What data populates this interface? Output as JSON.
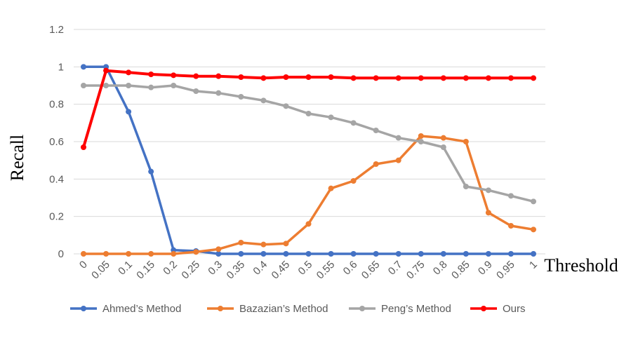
{
  "chart_data": {
    "type": "line",
    "title": "",
    "xlabel": "Threshold",
    "ylabel": "Recall",
    "ylim": [
      0,
      1.2
    ],
    "yticks": [
      "0",
      "0.2",
      "0.4",
      "0.6",
      "0.8",
      "1",
      "1.2"
    ],
    "x": [
      "0",
      "0.05",
      "0.1",
      "0.15",
      "0.2",
      "0.25",
      "0.3",
      "0.35",
      "0.4",
      "0.45",
      "0.5",
      "0.55",
      "0.6",
      "0.65",
      "0.7",
      "0.75",
      "0.8",
      "0.85",
      "0.9",
      "0.95",
      "1"
    ],
    "grid": true,
    "legend_position": "bottom",
    "series": [
      {
        "name": "Ahmed’s Method",
        "color": "#4472C4",
        "values": [
          1.0,
          1.0,
          0.76,
          0.44,
          0.02,
          0.015,
          0.0,
          0.0,
          0.0,
          0.0,
          0.0,
          0.0,
          0.0,
          0.0,
          0.0,
          0.0,
          0.0,
          0.0,
          0.0,
          0.0,
          0.0
        ]
      },
      {
        "name": "Bazazian’s Method",
        "color": "#ED7D31",
        "values": [
          0.0,
          0.0,
          0.0,
          0.0,
          0.0,
          0.01,
          0.025,
          0.06,
          0.05,
          0.055,
          0.16,
          0.35,
          0.39,
          0.48,
          0.5,
          0.63,
          0.62,
          0.6,
          0.22,
          0.15,
          0.13
        ]
      },
      {
        "name": "Peng’s Method",
        "color": "#A5A5A5",
        "values": [
          0.9,
          0.9,
          0.9,
          0.89,
          0.9,
          0.87,
          0.86,
          0.84,
          0.82,
          0.79,
          0.75,
          0.73,
          0.7,
          0.66,
          0.62,
          0.6,
          0.57,
          0.36,
          0.34,
          0.31,
          0.28
        ]
      },
      {
        "name": "Ours",
        "color": "#FF0000",
        "values": [
          0.57,
          0.98,
          0.97,
          0.96,
          0.955,
          0.95,
          0.95,
          0.945,
          0.94,
          0.945,
          0.945,
          0.945,
          0.94,
          0.94,
          0.94,
          0.94,
          0.94,
          0.94,
          0.94,
          0.94,
          0.94
        ]
      }
    ]
  }
}
